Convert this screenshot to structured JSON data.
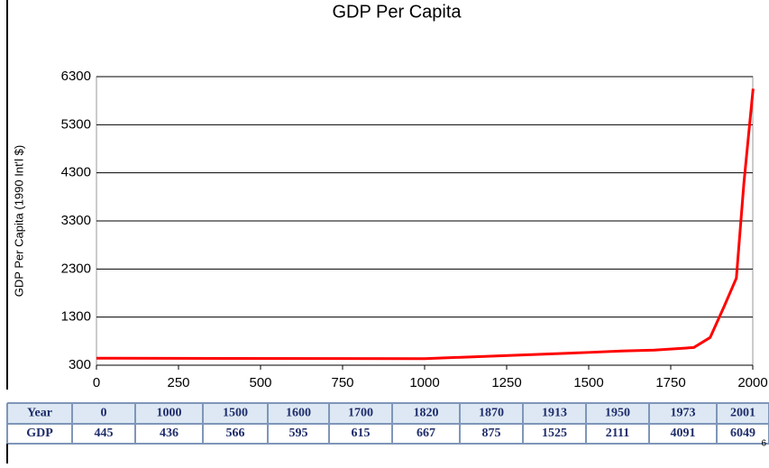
{
  "chart_data": {
    "type": "line",
    "title": "GDP Per Capita",
    "y_label": "GDP Per Capita (1990 Int'l $)",
    "x": [
      0,
      1000,
      1500,
      1600,
      1700,
      1820,
      1870,
      1913,
      1950,
      1973,
      2001
    ],
    "series": [
      {
        "name": "GDP",
        "color": "#ff0000",
        "values": [
          445,
          436,
          566,
          595,
          615,
          667,
          875,
          1525,
          2111,
          4091,
          6049
        ]
      }
    ],
    "x_header": "Year",
    "xlim": [
      0,
      2000
    ],
    "xticks": [
      0,
      250,
      500,
      750,
      1000,
      1250,
      1500,
      1750,
      2000
    ],
    "ylim": [
      300,
      6300
    ],
    "yticks": [
      300,
      1300,
      2300,
      3300,
      4300,
      5300,
      6300
    ],
    "grid": true
  },
  "page_number": "6"
}
